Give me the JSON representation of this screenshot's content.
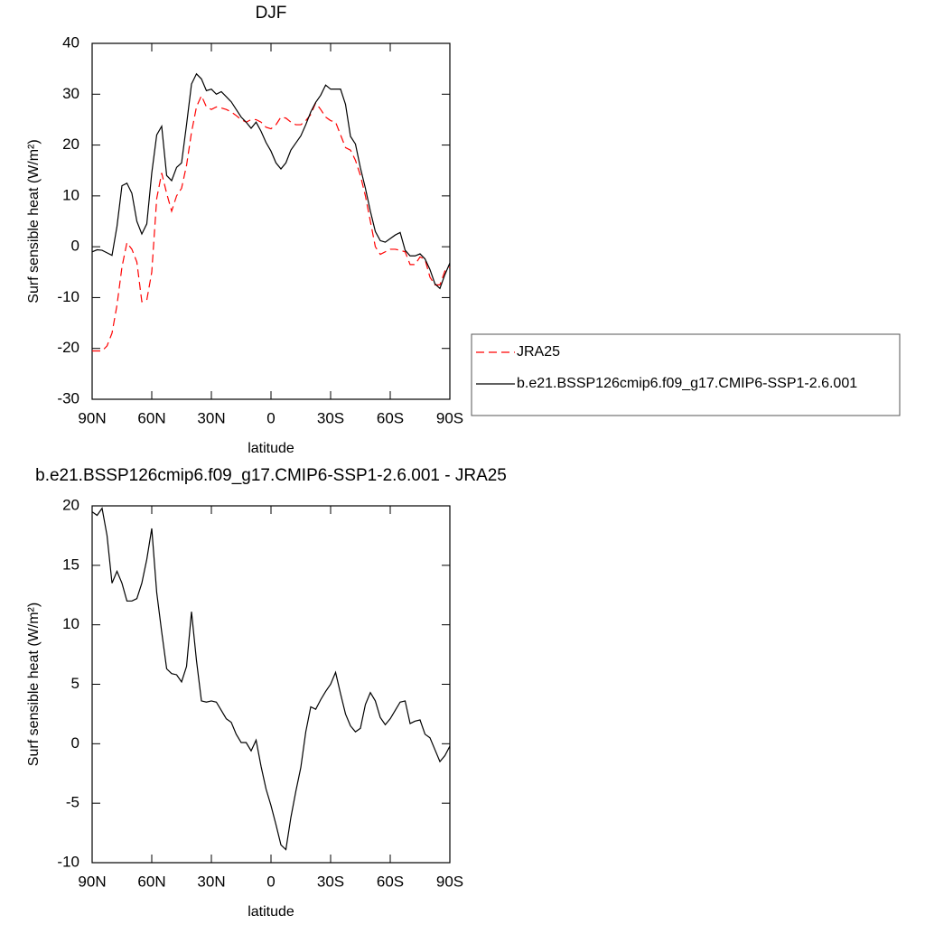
{
  "chart_data": [
    {
      "type": "line",
      "title": "DJF",
      "xlabel": "latitude",
      "ylabel": "Surf sensible heat (W/m²)",
      "x": [
        90,
        87.5,
        85,
        82.5,
        80,
        77.5,
        75,
        72.5,
        70,
        67.5,
        65,
        62.5,
        60,
        57.5,
        55,
        52.5,
        50,
        47.5,
        45,
        42.5,
        40,
        37.5,
        35,
        32.5,
        30,
        27.5,
        25,
        22.5,
        20,
        17.5,
        15,
        12.5,
        10,
        7.5,
        5,
        2.5,
        0,
        -2.5,
        -5,
        -7.5,
        -10,
        -12.5,
        -15,
        -17.5,
        -20,
        -22.5,
        -25,
        -27.5,
        -30,
        -32.5,
        -35,
        -37.5,
        -40,
        -42.5,
        -45,
        -47.5,
        -50,
        -52.5,
        -55,
        -57.5,
        -60,
        -62.5,
        -65,
        -67.5,
        -70,
        -72.5,
        -75,
        -77.5,
        -80,
        -82.5,
        -85,
        -87.5,
        -90
      ],
      "series": [
        {
          "name": "JRA25",
          "color": "#ff0000",
          "linestyle": "dashed",
          "values": [
            -20.5,
            -20.5,
            -20.5,
            -19.5,
            -17,
            -11.5,
            -4,
            0.8,
            -0.5,
            -3,
            -10.8,
            -10.5,
            -5,
            9.5,
            14.5,
            10.5,
            7,
            10,
            11.5,
            16,
            22.5,
            27.5,
            29.7,
            27.5,
            27,
            27.5,
            27.3,
            27,
            26.5,
            25.8,
            25,
            24.5,
            25,
            25,
            24.5,
            23.5,
            23.2,
            24,
            25.5,
            25.3,
            24.5,
            24,
            24,
            24.8,
            26,
            28.3,
            27,
            25.5,
            24.8,
            24.5,
            22,
            19.5,
            19,
            17,
            14,
            10,
            5,
            0,
            -1.5,
            -1,
            -0.5,
            -0.5,
            -0.7,
            -1,
            -3.5,
            -3.5,
            -2,
            -2.5,
            -6,
            -7.5,
            -7.5,
            -4.8,
            -4
          ]
        },
        {
          "name": "b.e21.BSSP126cmip6.f09_g17.CMIP6-SSP1-2.6.001",
          "color": "#000000",
          "linestyle": "solid",
          "values": [
            -1,
            -0.6,
            -0.7,
            -1.2,
            -1.7,
            4,
            12,
            12.5,
            10.5,
            5,
            2.5,
            4.5,
            14.5,
            22,
            23.7,
            14,
            13,
            15.6,
            16.5,
            24,
            32,
            34,
            33,
            30.7,
            31,
            30,
            30.5,
            29.5,
            28.5,
            27,
            25.5,
            24.5,
            23.3,
            24.5,
            22.7,
            20.5,
            18.8,
            16.5,
            15.3,
            16.5,
            19,
            20.4,
            21.8,
            24,
            26.5,
            28.4,
            29.8,
            31.8,
            31,
            31,
            31,
            28,
            21.7,
            20.2,
            15.5,
            11.5,
            7,
            3,
            1.2,
            0.9,
            1.6,
            2.3,
            2.8,
            -0.7,
            -1.8,
            -1.8,
            -1.4,
            -2.4,
            -4.5,
            -7.3,
            -8.2,
            -5.5,
            -3.2
          ]
        }
      ],
      "xlim": [
        90,
        -90
      ],
      "xticks": [
        {
          "value": 90,
          "label": "90N"
        },
        {
          "value": 60,
          "label": "60N"
        },
        {
          "value": 30,
          "label": "30N"
        },
        0,
        {
          "value": -30,
          "label": "30S"
        },
        {
          "value": -60,
          "label": "60S"
        },
        {
          "value": -90,
          "label": "90S"
        }
      ],
      "ylim": [
        -30,
        40
      ],
      "yticks": [
        -30,
        -20,
        -10,
        0,
        10,
        20,
        30,
        40
      ],
      "grid": false,
      "legend": "right"
    },
    {
      "type": "line",
      "title": "b.e21.BSSP126cmip6.f09_g17.CMIP6-SSP1-2.6.001 - JRA25",
      "xlabel": "latitude",
      "ylabel": "Surf sensible heat (W/m²)",
      "x": [
        90,
        87.5,
        85,
        82.5,
        80,
        77.5,
        75,
        72.5,
        70,
        67.5,
        65,
        62.5,
        60,
        57.5,
        55,
        52.5,
        50,
        47.5,
        45,
        42.5,
        40,
        37.5,
        35,
        32.5,
        30,
        27.5,
        25,
        22.5,
        20,
        17.5,
        15,
        12.5,
        10,
        7.5,
        5,
        2.5,
        0,
        -2.5,
        -5,
        -7.5,
        -10,
        -12.5,
        -15,
        -17.5,
        -20,
        -22.5,
        -25,
        -27.5,
        -30,
        -32.5,
        -35,
        -37.5,
        -40,
        -42.5,
        -45,
        -47.5,
        -50,
        -52.5,
        -55,
        -57.5,
        -60,
        -62.5,
        -65,
        -67.5,
        -70,
        -72.5,
        -75,
        -77.5,
        -80,
        -82.5,
        -85,
        -87.5,
        -90
      ],
      "series": [
        {
          "color": "#000000",
          "linestyle": "solid",
          "values": [
            19.5,
            19.2,
            19.8,
            17.5,
            13.5,
            14.5,
            13.5,
            12,
            12,
            12.2,
            13.5,
            15.5,
            18.1,
            12.7,
            9.4,
            6.3,
            5.9,
            5.8,
            5.2,
            6.5,
            11.1,
            7,
            3.6,
            3.5,
            3.6,
            3.5,
            2.8,
            2.1,
            1.8,
            0.8,
            0.1,
            0.1,
            -0.6,
            0.3,
            -1.9,
            -3.8,
            -5.2,
            -6.8,
            -8.5,
            -8.9,
            -6.2,
            -4,
            -2,
            1,
            3.1,
            2.9,
            3.7,
            4.4,
            5,
            6,
            4.2,
            2.5,
            1.5,
            1,
            1.3,
            3.3,
            4.3,
            3.6,
            2.2,
            1.6,
            2.1,
            2.8,
            3.5,
            3.6,
            1.7,
            1.9,
            2,
            0.8,
            0.5,
            -0.5,
            -1.5,
            -1,
            -0.2
          ]
        }
      ],
      "xlim": [
        90,
        -90
      ],
      "xticks": [
        {
          "value": 90,
          "label": "90N"
        },
        {
          "value": 60,
          "label": "60N"
        },
        {
          "value": 30,
          "label": "30N"
        },
        0,
        {
          "value": -30,
          "label": "30S"
        },
        {
          "value": -60,
          "label": "60S"
        },
        {
          "value": -90,
          "label": "90S"
        }
      ],
      "ylim": [
        -10,
        20
      ],
      "yticks": [
        -10,
        -5,
        0,
        5,
        10,
        15,
        20
      ],
      "grid": false
    }
  ]
}
